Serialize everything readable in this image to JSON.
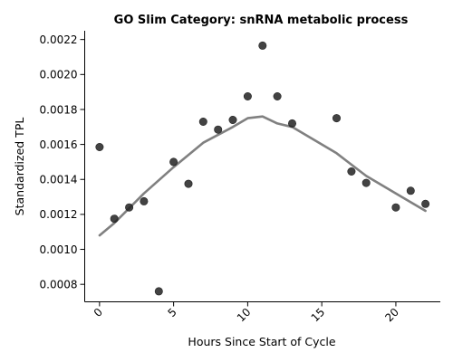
{
  "chart_data": {
    "type": "scatter",
    "title": "GO Slim Category: snRNA metabolic process",
    "xlabel": "Hours Since Start of Cycle",
    "ylabel": "Standardized TPL",
    "xlim": [
      -1,
      23
    ],
    "ylim": [
      0.0007,
      0.00225
    ],
    "xticks": [
      0,
      5,
      10,
      15,
      20
    ],
    "xtick_labels": [
      "0",
      "5",
      "10",
      "15",
      "20"
    ],
    "yticks": [
      0.0008,
      0.001,
      0.0012,
      0.0014,
      0.0016,
      0.0018,
      0.002,
      0.0022
    ],
    "ytick_labels": [
      "0.0008",
      "0.0010",
      "0.0012",
      "0.0014",
      "0.0016",
      "0.0018",
      "0.0020",
      "0.0022"
    ],
    "grid": false,
    "points": [
      {
        "x": 0,
        "y": 0.001585
      },
      {
        "x": 1,
        "y": 0.001175
      },
      {
        "x": 2,
        "y": 0.00124
      },
      {
        "x": 3,
        "y": 0.001275
      },
      {
        "x": 4,
        "y": 0.00076
      },
      {
        "x": 5,
        "y": 0.0015
      },
      {
        "x": 6,
        "y": 0.001375
      },
      {
        "x": 7,
        "y": 0.00173
      },
      {
        "x": 8,
        "y": 0.001685
      },
      {
        "x": 9,
        "y": 0.00174
      },
      {
        "x": 10,
        "y": 0.001875
      },
      {
        "x": 11,
        "y": 0.002165
      },
      {
        "x": 12,
        "y": 0.001875
      },
      {
        "x": 13,
        "y": 0.00172
      },
      {
        "x": 16,
        "y": 0.00175
      },
      {
        "x": 17,
        "y": 0.001445
      },
      {
        "x": 18,
        "y": 0.00138
      },
      {
        "x": 20,
        "y": 0.00124
      },
      {
        "x": 21,
        "y": 0.001335
      },
      {
        "x": 22,
        "y": 0.00126
      }
    ],
    "trend_line": [
      {
        "x": 0,
        "y": 0.00108
      },
      {
        "x": 1,
        "y": 0.00115
      },
      {
        "x": 2,
        "y": 0.001235
      },
      {
        "x": 3,
        "y": 0.00132
      },
      {
        "x": 5,
        "y": 0.00147
      },
      {
        "x": 7,
        "y": 0.00161
      },
      {
        "x": 9,
        "y": 0.0017
      },
      {
        "x": 10,
        "y": 0.00175
      },
      {
        "x": 11,
        "y": 0.00176
      },
      {
        "x": 12,
        "y": 0.00172
      },
      {
        "x": 13,
        "y": 0.0017
      },
      {
        "x": 16,
        "y": 0.00155
      },
      {
        "x": 18,
        "y": 0.00142
      },
      {
        "x": 20,
        "y": 0.00132
      },
      {
        "x": 22,
        "y": 0.00122
      }
    ],
    "colors": {
      "points": "#222222",
      "trend_line": "#808080"
    }
  }
}
